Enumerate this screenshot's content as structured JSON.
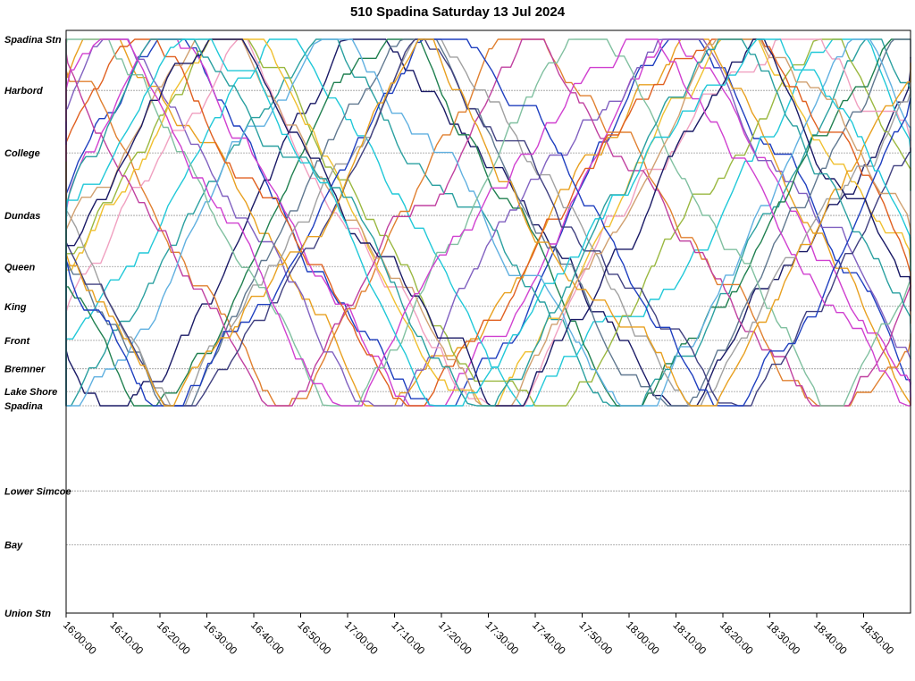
{
  "chart_data": {
    "type": "line",
    "title": "510 Spadina Saturday 13 Jul 2024",
    "xlabel": "",
    "ylabel": "",
    "x_ticks": [
      "16:00:00",
      "16:10:00",
      "16:20:00",
      "16:30:00",
      "16:40:00",
      "16:50:00",
      "17:00:00",
      "17:10:00",
      "17:20:00",
      "17:30:00",
      "17:40:00",
      "17:50:00",
      "18:00:00",
      "18:10:00",
      "18:20:00",
      "18:30:00",
      "18:40:00",
      "18:50:00"
    ],
    "xlim": [
      "16:00:00",
      "19:00:00"
    ],
    "stops": [
      {
        "name": "Spadina Stn",
        "km": 0
      },
      {
        "name": "Harbord",
        "km": 0.9
      },
      {
        "name": "College",
        "km": 2.0
      },
      {
        "name": "Dundas",
        "km": 3.1
      },
      {
        "name": "Queen",
        "km": 4.0
      },
      {
        "name": "King",
        "km": 4.7
      },
      {
        "name": "Front",
        "km": 5.3
      },
      {
        "name": "Bremner",
        "km": 5.8
      },
      {
        "name": "Lake Shore",
        "km": 6.2
      },
      {
        "name": "Spadina",
        "km": 6.45
      },
      {
        "name": "Lower Simcoe",
        "km": 7.95
      },
      {
        "name": "Bay",
        "km": 8.9
      },
      {
        "name": "Union Stn",
        "km": 10.1
      }
    ],
    "grid": true,
    "legend": "none",
    "series_colors": [
      "#1f3fbf",
      "#1a1a66",
      "#e8a020",
      "#2aa0a0",
      "#d040d0",
      "#20c8d8",
      "#e08030",
      "#9ab840",
      "#8060c0",
      "#f0a0c0",
      "#208050",
      "#f0c030",
      "#607890",
      "#c040a0",
      "#60b0e0",
      "#e06020",
      "#a0a0a0",
      "#404080",
      "#80c0a0",
      "#d0a070"
    ]
  }
}
